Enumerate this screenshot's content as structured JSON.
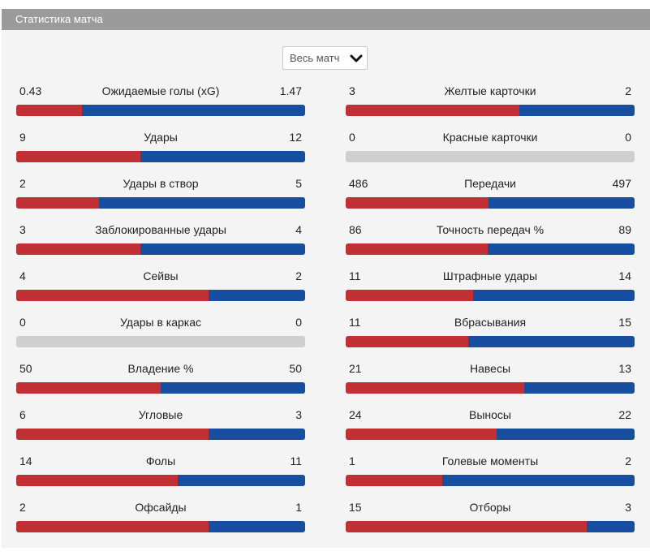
{
  "header": {
    "title": "Статистика матча"
  },
  "period_select": {
    "value": "Весь матч",
    "icon": "chevron-down-icon"
  },
  "colors": {
    "home": "#c13034",
    "away": "#174ea0",
    "empty": "#cfcfcf",
    "header_bg": "#9b9b9b"
  },
  "stats_left": [
    {
      "label": "Ожидаемые голы (xG)",
      "home": "0.43",
      "away": "1.47"
    },
    {
      "label": "Удары",
      "home": "9",
      "away": "12"
    },
    {
      "label": "Удары в створ",
      "home": "2",
      "away": "5"
    },
    {
      "label": "Заблокированные удары",
      "home": "3",
      "away": "4"
    },
    {
      "label": "Сейвы",
      "home": "4",
      "away": "2"
    },
    {
      "label": "Удары в каркас",
      "home": "0",
      "away": "0"
    },
    {
      "label": "Владение %",
      "home": "50",
      "away": "50"
    },
    {
      "label": "Угловые",
      "home": "6",
      "away": "3"
    },
    {
      "label": "Фолы",
      "home": "14",
      "away": "11"
    },
    {
      "label": "Офсайды",
      "home": "2",
      "away": "1"
    }
  ],
  "stats_right": [
    {
      "label": "Желтые карточки",
      "home": "3",
      "away": "2"
    },
    {
      "label": "Красные карточки",
      "home": "0",
      "away": "0"
    },
    {
      "label": "Передачи",
      "home": "486",
      "away": "497"
    },
    {
      "label": "Точность передач %",
      "home": "86",
      "away": "89"
    },
    {
      "label": "Штрафные удары",
      "home": "11",
      "away": "14"
    },
    {
      "label": "Вбрасывания",
      "home": "11",
      "away": "15"
    },
    {
      "label": "Навесы",
      "home": "21",
      "away": "13"
    },
    {
      "label": "Выносы",
      "home": "24",
      "away": "22"
    },
    {
      "label": "Голевые моменты",
      "home": "1",
      "away": "2"
    },
    {
      "label": "Отборы",
      "home": "15",
      "away": "3"
    }
  ]
}
